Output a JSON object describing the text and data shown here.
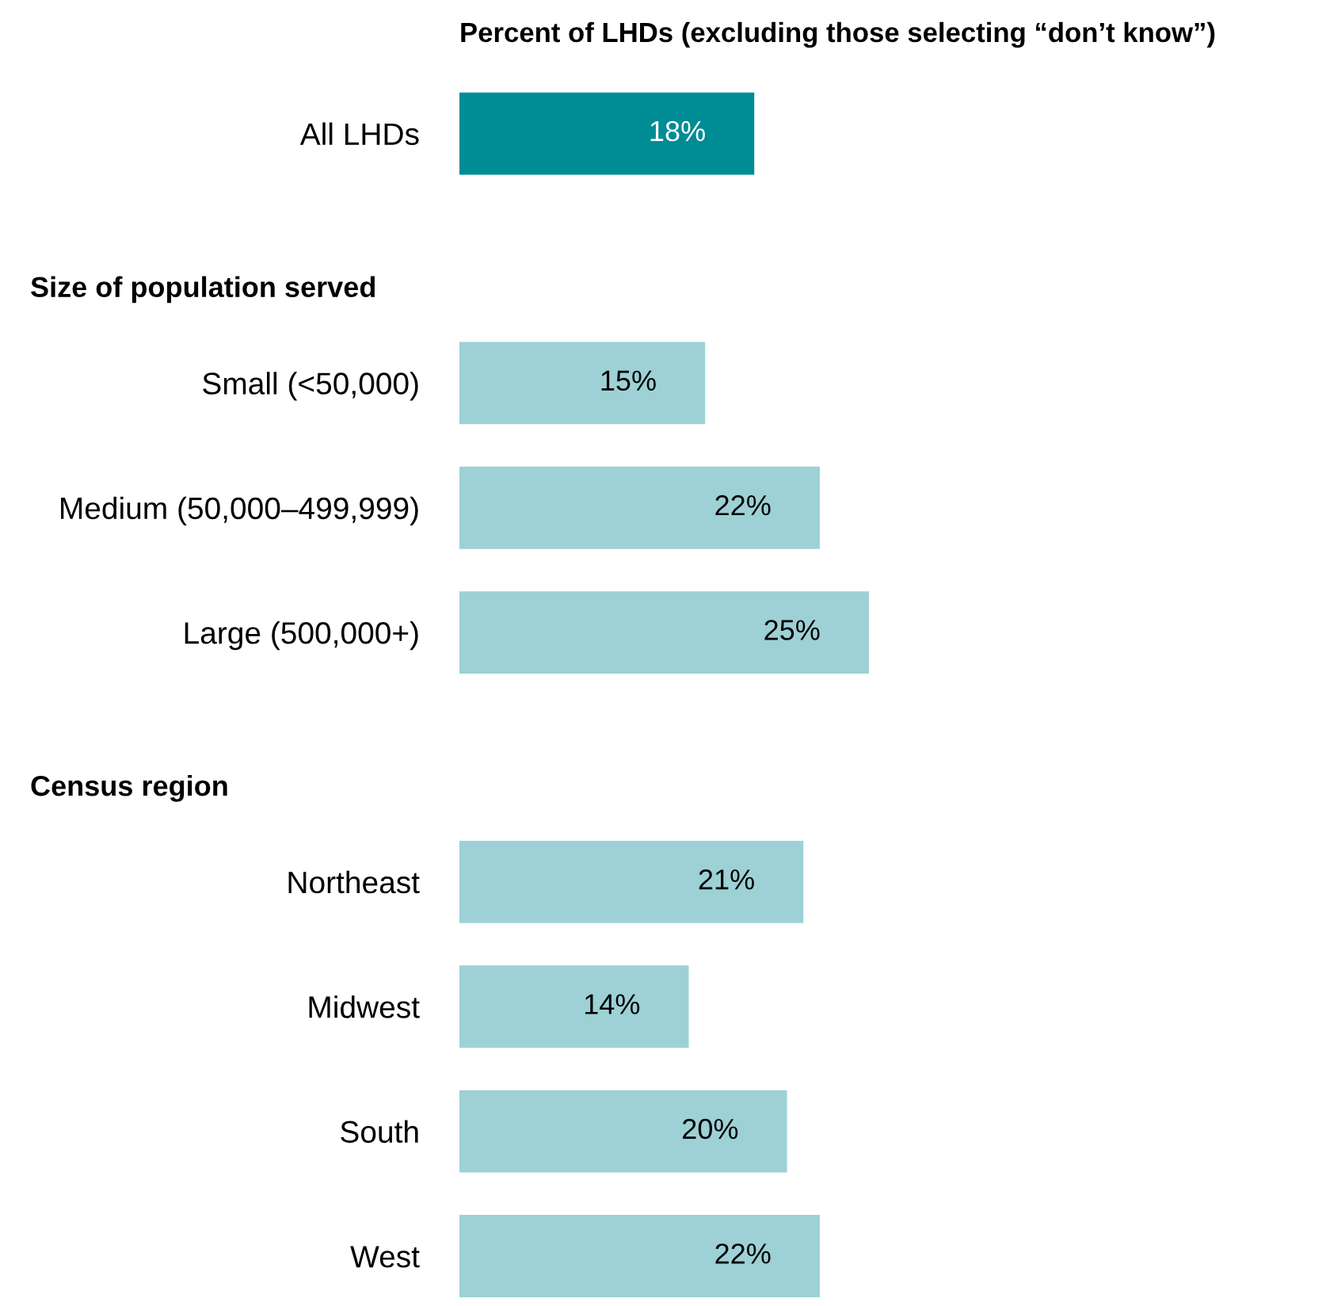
{
  "chart_data": {
    "type": "bar",
    "orientation": "horizontal",
    "title": "Percent of LHDs (excluding those selecting “don’t know”)",
    "categories": [
      "All LHDs",
      null,
      "Small (<50,000)",
      "Medium (50,000–499,999)",
      "Large (500,000+)",
      null,
      "Northeast",
      "Midwest",
      "South",
      "West"
    ],
    "annotations": [
      "Size of population served",
      "Census region"
    ],
    "values": [
      18,
      null,
      15,
      22,
      25,
      null,
      21,
      14,
      20,
      22
    ],
    "colors": [
      "#008c95",
      null,
      "#9dd1d6",
      "#9dd1d6",
      "#9dd1d6",
      null,
      "#9dd1d6",
      "#9dd1d6",
      "#9dd1d6",
      "#9dd1d6"
    ],
    "value_labels": [
      "18%",
      null,
      "15%",
      "22%",
      "25%",
      null,
      "21%",
      "14%",
      "20%",
      "22%"
    ],
    "grid": false,
    "legend": false
  }
}
